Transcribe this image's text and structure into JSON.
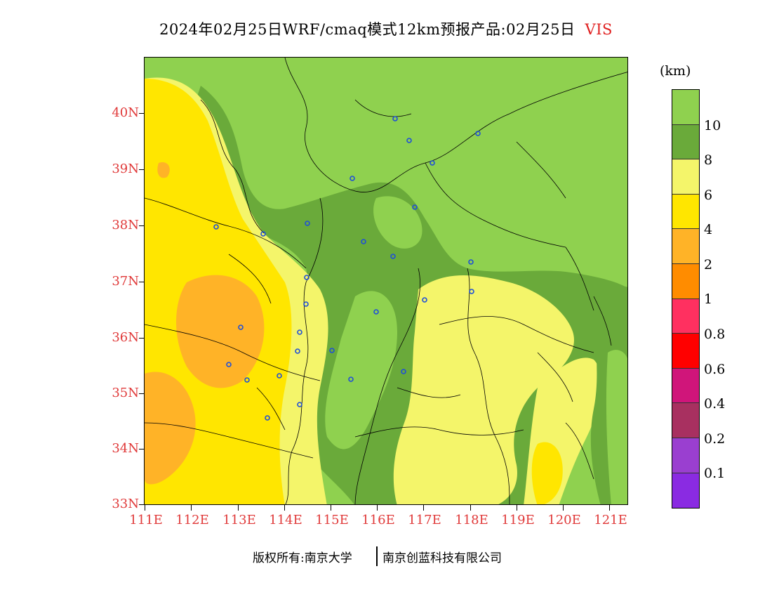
{
  "title": {
    "main": "2024年02月25日WRF/cmaq模式12km预报产品:02月25日",
    "variable": "VIS"
  },
  "axes": {
    "y_labels": [
      "40N",
      "39N",
      "38N",
      "37N",
      "36N",
      "35N",
      "34N",
      "33N"
    ],
    "x_labels": [
      "111E",
      "112E",
      "113E",
      "114E",
      "115E",
      "116E",
      "117E",
      "118E",
      "119E",
      "120E",
      "121E"
    ]
  },
  "colorbar": {
    "unit": "(km)",
    "labels": [
      "10",
      "8",
      "6",
      "4",
      "2",
      "1",
      "0.8",
      "0.6",
      "0.4",
      "0.2",
      "0.1"
    ],
    "colors": [
      "#8fd14f",
      "#6aaa3a",
      "#f4f56a",
      "#ffe600",
      "#ffb327",
      "#ff8c00",
      "#ff3060",
      "#ff0000",
      "#d0157a",
      "#a83060",
      "#9a3fd0",
      "#8a2be2"
    ]
  },
  "footer": {
    "copyright": "版权所有:南京大学",
    "company": "南京创蓝科技有限公司"
  },
  "map": {
    "lon_range": [
      111,
      121.4
    ],
    "lat_range": [
      33,
      41
    ]
  }
}
